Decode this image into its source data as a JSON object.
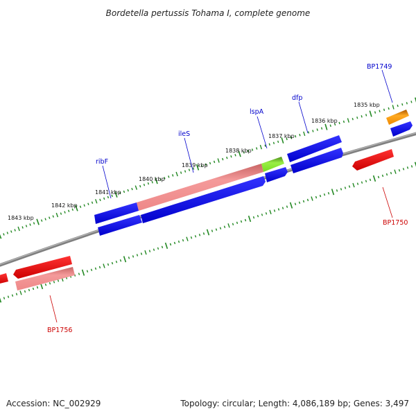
{
  "title": "Bordetella pertussis Tohama I, complete genome",
  "footer": {
    "accession": "Accession: NC_002929",
    "summary": "Topology: circular; Length: 4,086,189 bp; Genes: 3,497"
  },
  "scale": {
    "tick_labels": [
      "1843 kbp",
      "1842 kbp",
      "1841 kbp",
      "1840 kbp",
      "1839 kbp",
      "1838 kbp",
      "1837 kbp",
      "1836 kbp",
      "1835 kbp"
    ]
  },
  "genes": {
    "labels": {
      "ribF": "ribF",
      "ileS": "ileS",
      "lspA": "lspA",
      "dfp": "dfp",
      "BP1749": "BP1749",
      "BP1750": "BP1750",
      "BP1756": "BP1756"
    }
  },
  "colors": {
    "blue_gene": "#0000ee",
    "red_gene": "#ee0000",
    "pink_gene": "#ee8888",
    "green_gene": "#66cc22",
    "orange_gene": "#ee8800",
    "backbone": "#808080",
    "tick": "#228822",
    "blue_label": "#0000cc",
    "red_label": "#cc0000"
  }
}
